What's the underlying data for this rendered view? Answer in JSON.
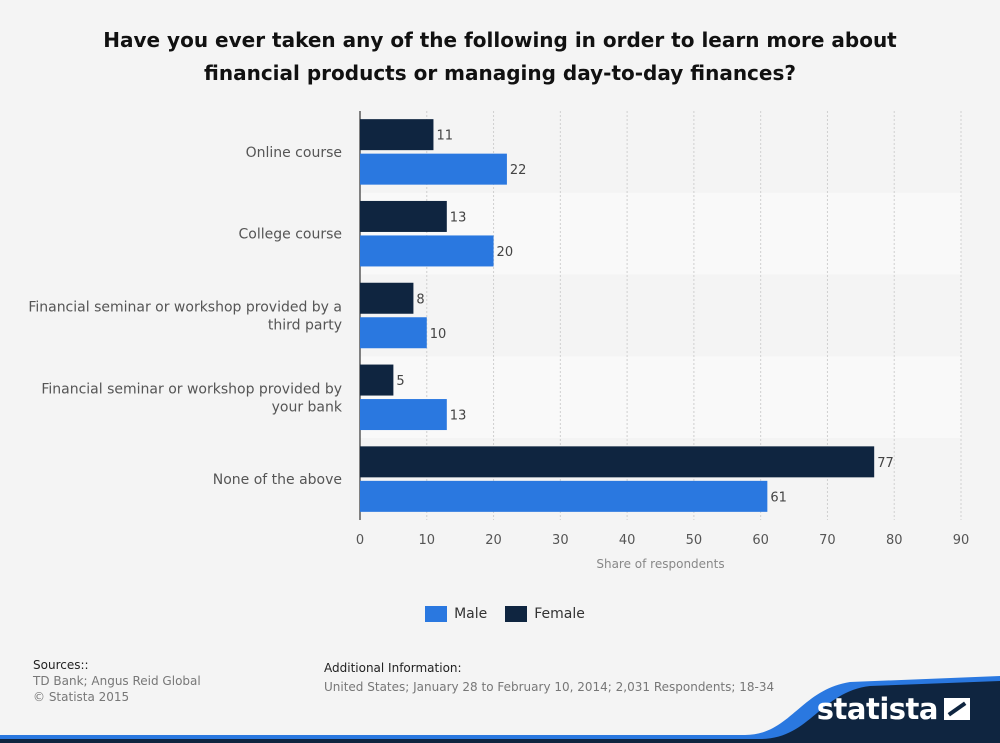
{
  "title_lines": [
    "Have you ever taken any of the following in order to learn more about",
    "financial products or managing day-to-day finances?"
  ],
  "chart_data": {
    "type": "bar",
    "orientation": "horizontal",
    "categories": [
      [
        "Online course"
      ],
      [
        "College course"
      ],
      [
        "Financial seminar or workshop provided by a",
        "third party"
      ],
      [
        "Financial seminar or workshop provided by",
        "your bank"
      ],
      [
        "None of the above"
      ]
    ],
    "series": [
      {
        "name": "Female",
        "color": "#0f2540",
        "values": [
          11,
          13,
          8,
          5,
          77
        ]
      },
      {
        "name": "Male",
        "color": "#2a78e0",
        "values": [
          22,
          20,
          10,
          13,
          61
        ]
      }
    ],
    "xlabel": "Share of respondents",
    "xlim": [
      0,
      90
    ],
    "xticks": [
      "0",
      "10",
      "20",
      "30",
      "40",
      "50",
      "60",
      "70",
      "80",
      "90"
    ],
    "grid": true,
    "legend_position": "bottom"
  },
  "legend": [
    {
      "label": "Male",
      "color": "#2a78e0"
    },
    {
      "label": "Female",
      "color": "#0f2540"
    }
  ],
  "footer": {
    "sources_heading": "Sources::",
    "sources_lines": [
      "TD Bank; Angus Reid Global",
      "© Statista 2015"
    ],
    "additional_heading": "Additional Information:",
    "additional_text": "United States; January 28 to February 10, 2014; 2,031 Respondents; 18-34"
  },
  "brand": "statista",
  "colors": {
    "background": "#f4f4f4",
    "band_light": "#f9f9f9",
    "footer_band": "#0f2540",
    "footer_stripe": "#2a78e0"
  }
}
